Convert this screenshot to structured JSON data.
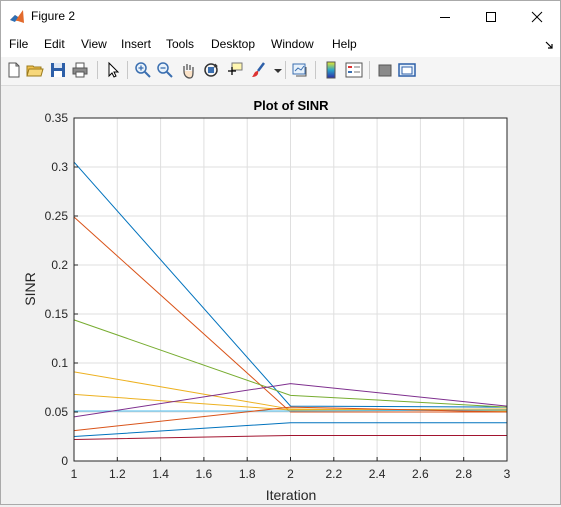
{
  "window": {
    "title": "Figure 2"
  },
  "menu": [
    "File",
    "Edit",
    "View",
    "Insert",
    "Tools",
    "Desktop",
    "Window",
    "Help"
  ],
  "toolbar": {
    "icons": [
      "new-figure-icon",
      "open-file-icon",
      "save-icon",
      "print-icon",
      "pointer-icon",
      "zoom-in-icon",
      "zoom-out-icon",
      "pan-icon",
      "rotate-3d-icon",
      "data-cursor-icon",
      "brush-icon",
      "link-plot-icon",
      "colorbar-icon",
      "legend-icon",
      "hide-plot-tools-icon",
      "show-plot-tools-icon"
    ]
  },
  "chart_data": {
    "type": "line",
    "title": "Plot of SINR",
    "xlabel": "Iteration",
    "ylabel": "SINR",
    "xlim": [
      1,
      3
    ],
    "ylim": [
      0,
      0.35
    ],
    "xticks": [
      "1",
      "1.2",
      "1.4",
      "1.6",
      "1.8",
      "2",
      "2.2",
      "2.4",
      "2.6",
      "2.8",
      "3"
    ],
    "yticks": [
      "0",
      "0.05",
      "0.1",
      "0.15",
      "0.2",
      "0.25",
      "0.3",
      "0.35"
    ],
    "grid": true,
    "x": [
      1,
      2,
      3
    ],
    "series": [
      {
        "color": "#0072bd",
        "values": [
          0.305,
          0.056,
          0.055
        ]
      },
      {
        "color": "#d95319",
        "values": [
          0.249,
          0.05,
          0.05
        ]
      },
      {
        "color": "#77ac30",
        "values": [
          0.144,
          0.067,
          0.055
        ]
      },
      {
        "color": "#edb120",
        "values": [
          0.091,
          0.053,
          0.051
        ]
      },
      {
        "color": "#edb120",
        "values": [
          0.068,
          0.052,
          0.053
        ]
      },
      {
        "color": "#4dbeee",
        "values": [
          0.051,
          0.051,
          0.052
        ]
      },
      {
        "color": "#7e2f8e",
        "values": [
          0.045,
          0.079,
          0.056
        ]
      },
      {
        "color": "#d95319",
        "values": [
          0.031,
          0.055,
          0.05
        ]
      },
      {
        "color": "#0072bd",
        "values": [
          0.025,
          0.039,
          0.039
        ]
      },
      {
        "color": "#a2142f",
        "values": [
          0.022,
          0.026,
          0.026
        ]
      }
    ]
  }
}
